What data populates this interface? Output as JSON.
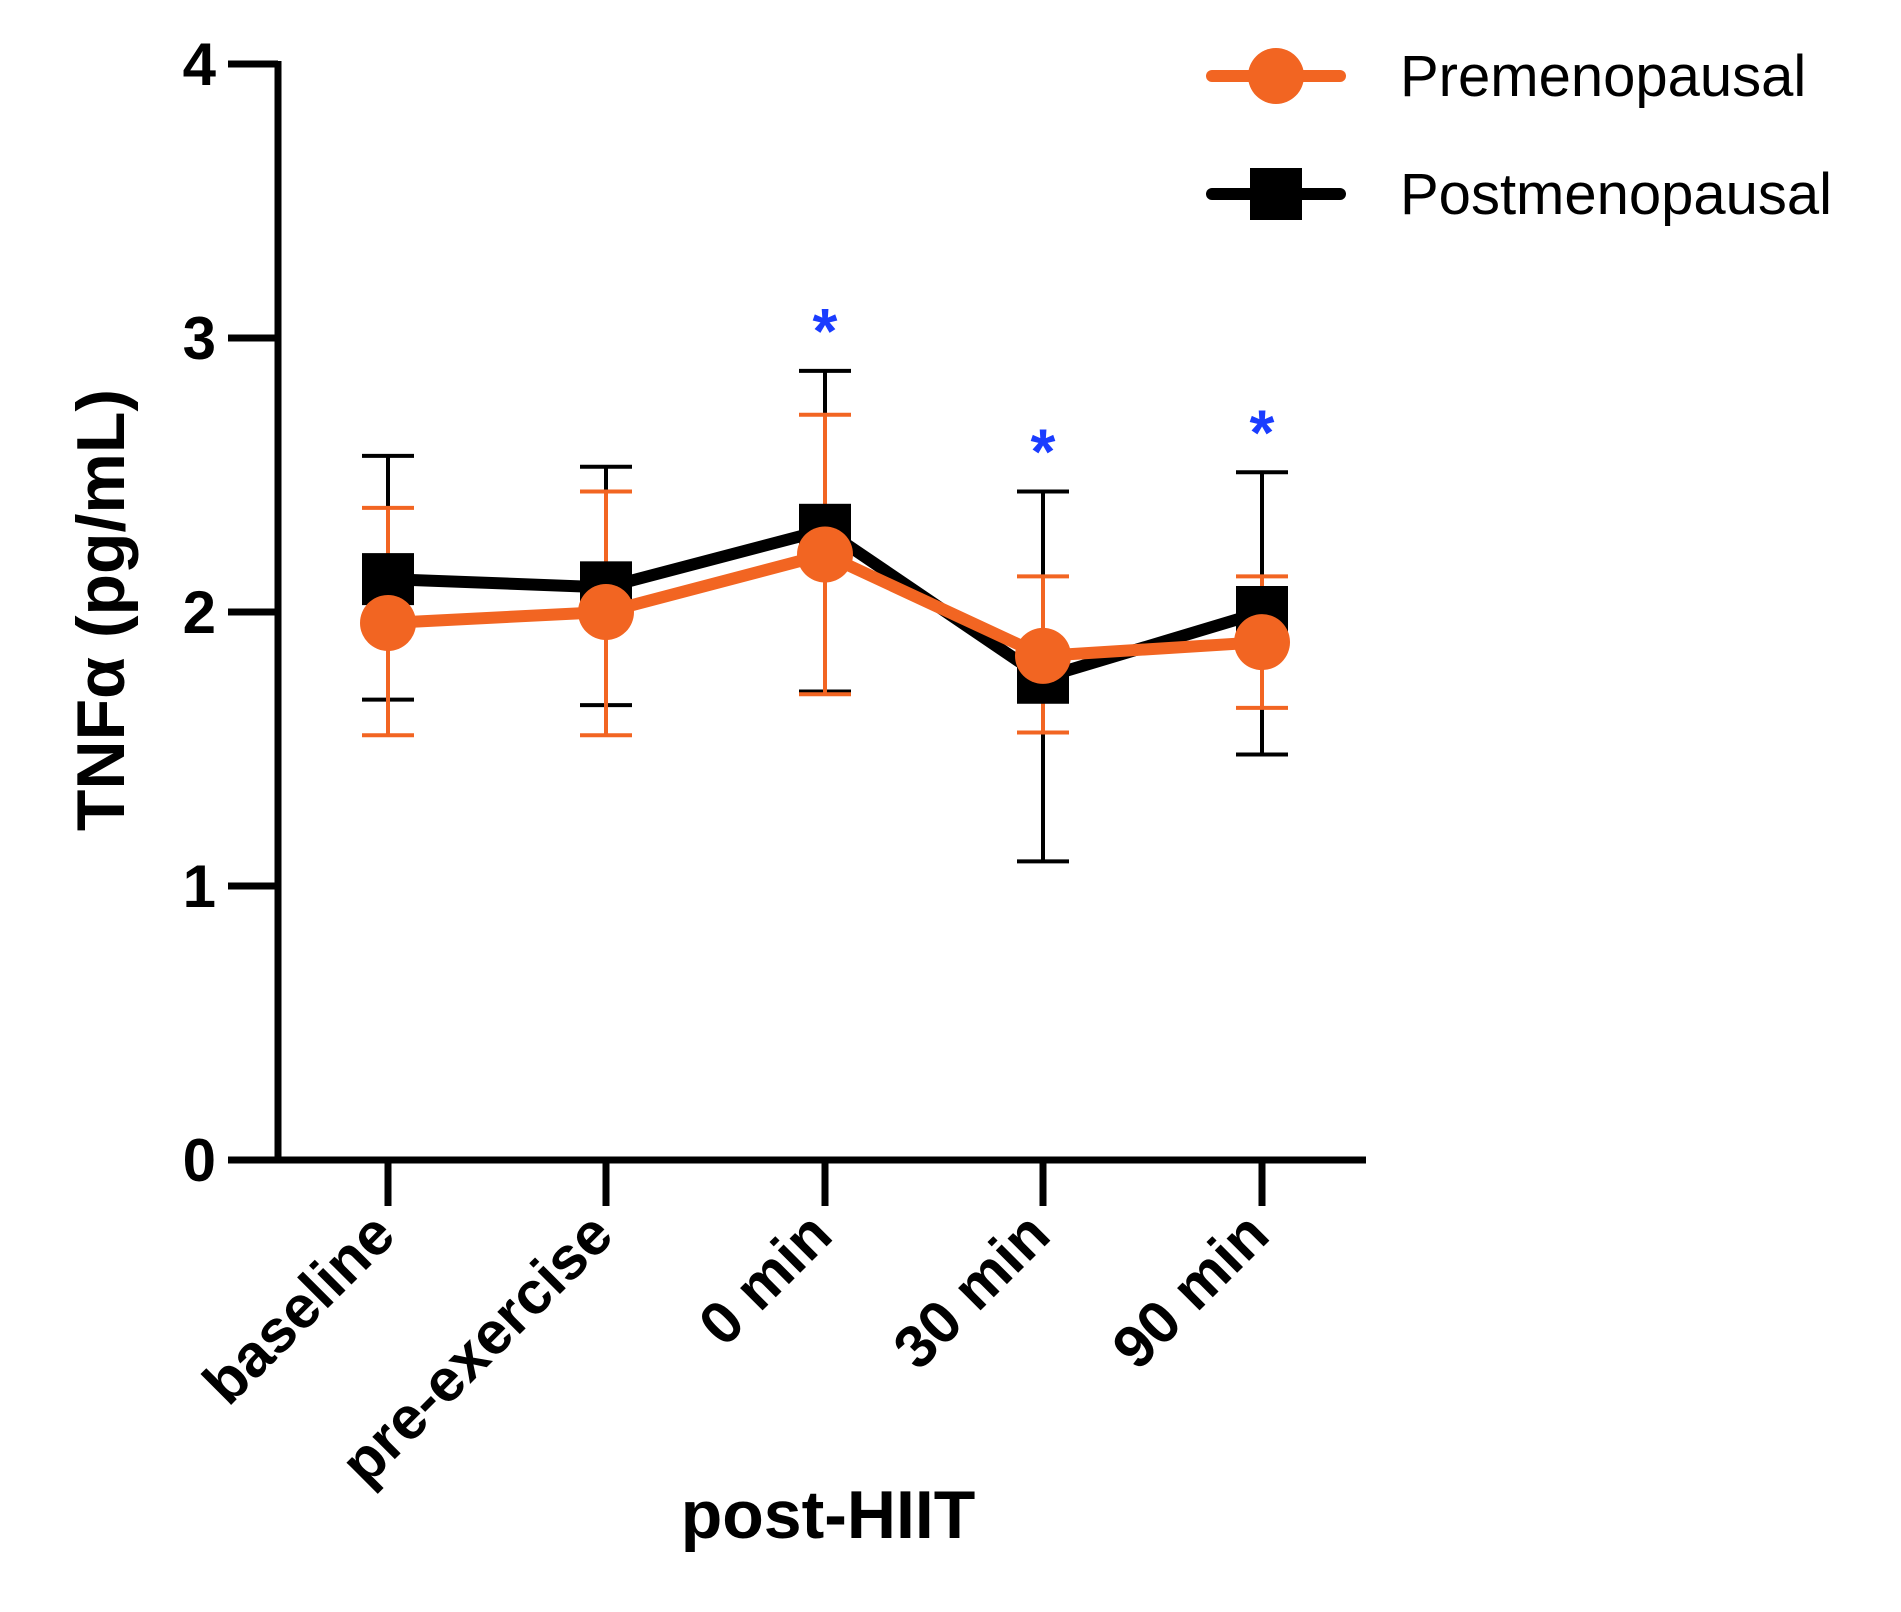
{
  "chart_data": {
    "type": "line",
    "xlabel": "post-HIIT",
    "ylabel": "TNFα (pg/mL)",
    "categories": [
      "baseline",
      "pre-exercise",
      "0 min",
      "30 min",
      "90 min"
    ],
    "ylim": [
      0,
      4
    ],
    "yticks": [
      "0",
      "1",
      "2",
      "3",
      "4"
    ],
    "grid": false,
    "legend_position": "top-right",
    "series": [
      {
        "name": "Premenopausal",
        "color": "#f26522",
        "marker": "circle",
        "values": [
          1.96,
          2.0,
          2.21,
          1.84,
          1.89
        ],
        "err_upper": [
          2.38,
          2.44,
          2.72,
          2.13,
          2.13
        ],
        "err_lower": [
          1.55,
          1.55,
          1.7,
          1.56,
          1.65
        ]
      },
      {
        "name": "Postmenopausal",
        "color": "#000000",
        "marker": "square",
        "values": [
          2.12,
          2.09,
          2.3,
          1.76,
          2.0
        ],
        "err_upper": [
          2.57,
          2.53,
          2.88,
          2.44,
          2.51
        ],
        "err_lower": [
          1.68,
          1.66,
          1.71,
          1.09,
          1.48
        ]
      }
    ],
    "annotations": [
      {
        "category": "0 min",
        "text": "*",
        "color": "#1a3cff"
      },
      {
        "category": "30 min",
        "text": "*",
        "color": "#1a3cff"
      },
      {
        "category": "90 min",
        "text": "*",
        "color": "#1a3cff"
      }
    ]
  }
}
